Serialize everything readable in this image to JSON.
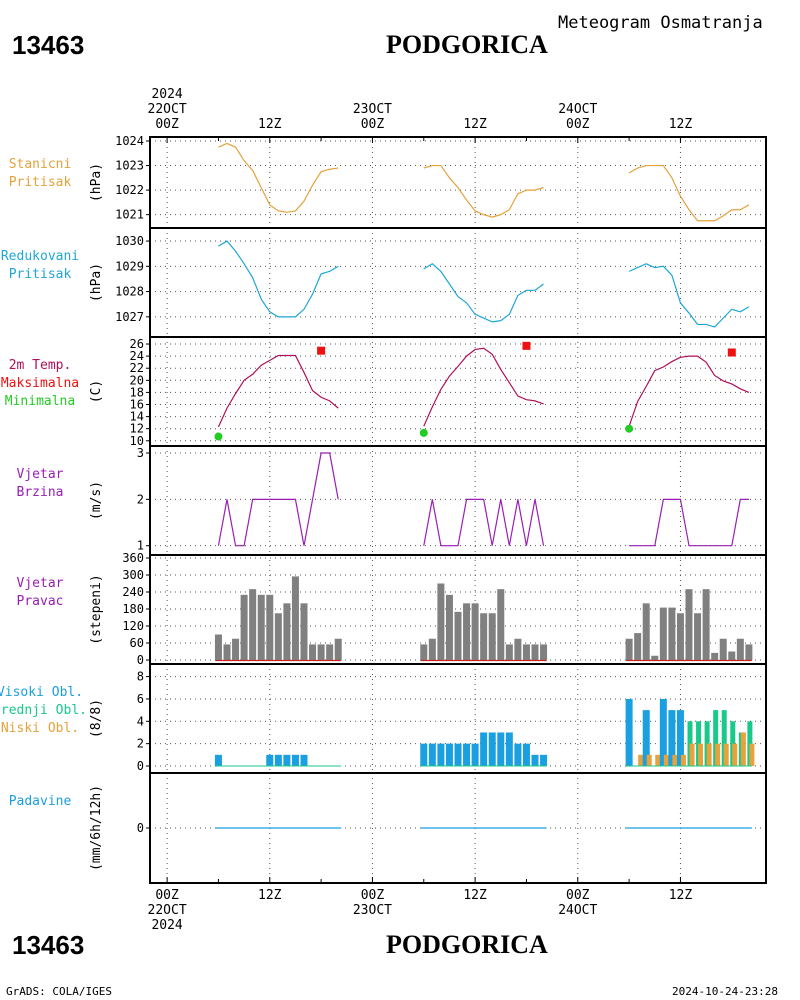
{
  "header": {
    "station_id": "13463",
    "station_name": "PODGORICA",
    "subtitle": "Meteogram Osmatranja"
  },
  "footer": {
    "credit": "GrADS: COLA/IGES",
    "timestamp": "2024-10-24-23:28"
  },
  "time_axis": {
    "top_labels": [
      {
        "hour": 0,
        "lines": [
          "2024",
          "22OCT",
          "00Z"
        ]
      },
      {
        "hour": 12,
        "lines": [
          "12Z"
        ]
      },
      {
        "hour": 24,
        "lines": [
          "23OCT",
          "00Z"
        ]
      },
      {
        "hour": 36,
        "lines": [
          "12Z"
        ]
      },
      {
        "hour": 48,
        "lines": [
          "24OCT",
          "00Z"
        ]
      },
      {
        "hour": 60,
        "lines": [
          "12Z"
        ]
      }
    ],
    "bottom_labels": [
      {
        "hour": 0,
        "lines": [
          "00Z",
          "22OCT",
          "2024"
        ]
      },
      {
        "hour": 12,
        "lines": [
          "12Z"
        ]
      },
      {
        "hour": 24,
        "lines": [
          "00Z",
          "23OCT"
        ]
      },
      {
        "hour": 36,
        "lines": [
          "12Z"
        ]
      },
      {
        "hour": 48,
        "lines": [
          "00Z",
          "24OCT"
        ]
      },
      {
        "hour": 60,
        "lines": [
          "12Z"
        ]
      }
    ]
  },
  "colors": {
    "station_pressure": "#e6a23c",
    "reduced_pressure": "#1ea7d6",
    "temperature": "#b0105a",
    "max_temp": "#ee1111",
    "min_temp": "#22cc22",
    "wind": "#9a1eb5",
    "direction_bar": "#808080",
    "cloud_high": "#1a9fe0",
    "cloud_mid": "#18c98a",
    "cloud_low": "#e6a23c",
    "precip": "#1a9fe0"
  },
  "chart_data": [
    {
      "type": "line",
      "panel": "station_pressure",
      "label_lines": [
        "Stanicni",
        "Pritisak"
      ],
      "ylabel": "(hPa)",
      "ylim": [
        1020.7,
        1024.0
      ],
      "yticks": [
        1021,
        1022,
        1023,
        1024
      ],
      "series": [
        {
          "x": [
            6,
            7,
            8,
            9,
            10,
            11,
            12,
            13,
            14,
            15,
            16,
            17,
            18,
            19,
            20
          ],
          "y": [
            1023.75,
            1023.9,
            1023.75,
            1023.2,
            1022.8,
            1022.1,
            1021.4,
            1021.15,
            1021.1,
            1021.15,
            1021.55,
            1022.2,
            1022.75,
            1022.85,
            1022.9
          ]
        },
        {
          "x": [
            30,
            31,
            32,
            33,
            34,
            35,
            36,
            37,
            38,
            39,
            40,
            41,
            42,
            43,
            44
          ],
          "y": [
            1022.9,
            1023.0,
            1023.0,
            1022.5,
            1022.1,
            1021.6,
            1021.15,
            1021.0,
            1020.9,
            1021.0,
            1021.2,
            1021.85,
            1022.0,
            1022.0,
            1022.1
          ]
        },
        {
          "x": [
            54,
            55,
            56,
            57,
            58,
            59,
            60,
            61,
            62,
            63,
            64,
            65,
            66,
            67,
            68
          ],
          "y": [
            1022.7,
            1022.9,
            1023.0,
            1023.0,
            1023.0,
            1022.5,
            1021.75,
            1021.2,
            1020.75,
            1020.75,
            1020.75,
            1020.95,
            1021.2,
            1021.2,
            1021.4
          ]
        }
      ]
    },
    {
      "type": "line",
      "panel": "reduced_pressure",
      "label_lines": [
        "Redukovani",
        "Pritisak"
      ],
      "ylabel": "(hPa)",
      "ylim": [
        1026.4,
        1030.2
      ],
      "yticks": [
        1027,
        1028,
        1029,
        1030
      ],
      "series": [
        {
          "x": [
            6,
            7,
            8,
            9,
            10,
            11,
            12,
            13,
            14,
            15,
            16,
            17,
            18,
            19,
            20
          ],
          "y": [
            1029.8,
            1030.0,
            1029.6,
            1029.1,
            1028.55,
            1027.7,
            1027.2,
            1027.0,
            1027.0,
            1027.0,
            1027.3,
            1027.9,
            1028.7,
            1028.8,
            1029.0
          ]
        },
        {
          "x": [
            30,
            31,
            32,
            33,
            34,
            35,
            36,
            37,
            38,
            39,
            40,
            41,
            42,
            43,
            44
          ],
          "y": [
            1028.9,
            1029.1,
            1028.8,
            1028.3,
            1027.8,
            1027.55,
            1027.1,
            1026.95,
            1026.8,
            1026.85,
            1027.1,
            1027.85,
            1028.05,
            1028.05,
            1028.3
          ]
        },
        {
          "x": [
            54,
            55,
            56,
            57,
            58,
            59,
            60,
            61,
            62,
            63,
            64,
            65,
            66,
            67,
            68
          ],
          "y": [
            1028.8,
            1028.95,
            1029.1,
            1028.95,
            1029.0,
            1028.65,
            1027.55,
            1027.15,
            1026.7,
            1026.7,
            1026.6,
            1026.95,
            1027.3,
            1027.2,
            1027.4
          ]
        }
      ]
    },
    {
      "type": "line",
      "panel": "temperature",
      "label_lines": [
        "2m Temp.",
        "Maksimalna",
        "Minimalna"
      ],
      "ylabel": "(C)",
      "ylim": [
        9.8,
        26.5
      ],
      "yticks": [
        10,
        12,
        14,
        16,
        18,
        20,
        22,
        24,
        26
      ],
      "series": [
        {
          "x": [
            6,
            7,
            8,
            9,
            10,
            11,
            12,
            13,
            14,
            15,
            16,
            17,
            18,
            19,
            20
          ],
          "y": [
            12.3,
            15.4,
            17.8,
            20.0,
            21.0,
            22.5,
            23.3,
            24.1,
            24.1,
            24.1,
            21.3,
            18.3,
            17.2,
            16.6,
            15.4
          ]
        },
        {
          "x": [
            30,
            31,
            32,
            33,
            34,
            35,
            36,
            37,
            38,
            39,
            40,
            41,
            42,
            43,
            44
          ],
          "y": [
            12.4,
            15.6,
            18.5,
            20.7,
            22.3,
            24.0,
            25.1,
            25.3,
            24.3,
            21.8,
            19.6,
            17.4,
            16.8,
            16.6,
            16.1
          ]
        },
        {
          "x": [
            54,
            55,
            56,
            57,
            58,
            59,
            60,
            61,
            62,
            63,
            64,
            65,
            66,
            67,
            68
          ],
          "y": [
            12.4,
            16.5,
            19.0,
            21.6,
            22.2,
            23.1,
            23.8,
            24.0,
            24.0,
            23.0,
            20.8,
            19.9,
            19.4,
            18.6,
            18.0
          ]
        }
      ],
      "maxima": [
        {
          "x": 18,
          "y": 24.9
        },
        {
          "x": 42,
          "y": 25.7
        },
        {
          "x": 66,
          "y": 24.6
        }
      ],
      "minima": [
        {
          "x": 6,
          "y": 10.7
        },
        {
          "x": 30,
          "y": 11.3
        },
        {
          "x": 54,
          "y": 12.0
        }
      ]
    },
    {
      "type": "line",
      "panel": "wind_speed",
      "label_lines": [
        "Vjetar",
        "Brzina"
      ],
      "ylabel": "(m/s)",
      "ylim": [
        0.95,
        3.0
      ],
      "yticks": [
        1,
        2,
        3
      ],
      "series": [
        {
          "x": [
            6,
            7,
            8,
            9,
            10,
            11,
            12,
            13,
            14,
            15,
            16,
            17,
            18,
            19,
            20
          ],
          "y": [
            1,
            2,
            1,
            1,
            2,
            2,
            2,
            2,
            2,
            2,
            1,
            2,
            3,
            3,
            2
          ]
        },
        {
          "x": [
            30,
            31,
            32,
            33,
            34,
            35,
            36,
            37,
            38,
            39,
            40,
            41,
            42,
            43,
            44
          ],
          "y": [
            1,
            2,
            1,
            1,
            1,
            2,
            2,
            2,
            1,
            2,
            1,
            2,
            1,
            2,
            1
          ]
        },
        {
          "x": [
            54,
            55,
            56,
            57,
            58,
            59,
            60,
            61,
            62,
            63,
            64,
            65,
            66,
            67,
            68
          ],
          "y": [
            1,
            1,
            1,
            1,
            2,
            2,
            2,
            1,
            1,
            1,
            1,
            1,
            1,
            2,
            2
          ]
        }
      ]
    },
    {
      "type": "bar",
      "panel": "wind_direction",
      "label_lines": [
        "Vjetar",
        "Pravac"
      ],
      "ylabel": "(stepeni)",
      "ylim": [
        0,
        360
      ],
      "yticks": [
        0,
        60,
        120,
        180,
        240,
        300,
        360
      ],
      "x": [
        6,
        7,
        8,
        9,
        10,
        11,
        12,
        13,
        14,
        15,
        16,
        17,
        18,
        19,
        20,
        30,
        31,
        32,
        33,
        34,
        35,
        36,
        37,
        38,
        39,
        40,
        41,
        42,
        43,
        44,
        54,
        55,
        56,
        57,
        58,
        59,
        60,
        61,
        62,
        63,
        64,
        65,
        66,
        67,
        68
      ],
      "values": [
        90,
        55,
        75,
        230,
        250,
        230,
        230,
        165,
        200,
        295,
        200,
        55,
        55,
        55,
        75,
        55,
        75,
        270,
        230,
        170,
        200,
        200,
        165,
        165,
        250,
        55,
        75,
        55,
        55,
        55,
        75,
        95,
        200,
        15,
        185,
        185,
        165,
        250,
        165,
        250,
        25,
        75,
        30,
        75,
        55
      ]
    },
    {
      "type": "bar",
      "panel": "clouds",
      "label_lines": [
        "Visoki Obl.",
        "Srednji Obl.",
        "Niski Obl."
      ],
      "ylabel": "(8/8)",
      "ylim": [
        0,
        8.5
      ],
      "yticks": [
        0,
        2,
        4,
        6,
        8
      ],
      "x": [
        6,
        7,
        8,
        9,
        10,
        11,
        12,
        13,
        14,
        15,
        16,
        17,
        18,
        19,
        20,
        30,
        31,
        32,
        33,
        34,
        35,
        36,
        37,
        38,
        39,
        40,
        41,
        42,
        43,
        44,
        54,
        55,
        56,
        57,
        58,
        59,
        60,
        61,
        62,
        63,
        64,
        65,
        66,
        67,
        68
      ],
      "series": [
        {
          "name": "Visoki Obl.",
          "values": [
            1,
            0,
            0,
            0,
            0,
            0,
            1,
            1,
            1,
            1,
            1,
            0,
            0,
            0,
            0,
            2,
            2,
            2,
            2,
            2,
            2,
            2,
            3,
            3,
            3,
            3,
            2,
            2,
            1,
            1,
            6,
            0,
            5,
            0,
            6,
            5,
            5,
            0,
            0,
            0,
            0,
            0,
            0,
            0,
            0
          ]
        },
        {
          "name": "Srednji Obl.",
          "values": [
            0,
            0,
            0,
            0,
            0,
            0,
            0,
            0,
            0,
            0,
            0,
            0,
            0,
            0,
            0,
            0,
            0,
            0,
            0,
            0,
            0,
            0,
            0,
            0,
            0,
            0,
            0,
            0,
            0,
            0,
            0,
            0,
            0,
            0,
            0,
            0,
            0,
            4,
            4,
            4,
            5,
            5,
            4,
            3,
            4
          ]
        },
        {
          "name": "Niski Obl.",
          "values": [
            0,
            0,
            0,
            0,
            0,
            0,
            0,
            0,
            0,
            0,
            0,
            0,
            0,
            0,
            0,
            0,
            0,
            0,
            0,
            0,
            0,
            0,
            0,
            0,
            0,
            0,
            0,
            0,
            0,
            0,
            0,
            1,
            1,
            1,
            1,
            1,
            1,
            2,
            2,
            2,
            2,
            2,
            2,
            3,
            2
          ]
        }
      ]
    },
    {
      "type": "bar",
      "panel": "precipitation",
      "label_lines": [
        "Padavine"
      ],
      "ylabel": "(mm/6h/12h)",
      "ylim": [
        -4,
        4
      ],
      "yticks": [
        0
      ],
      "segments": [
        [
          6,
          20
        ],
        [
          30,
          44
        ],
        [
          54,
          68
        ]
      ],
      "values": [
        0,
        0,
        0
      ]
    }
  ]
}
